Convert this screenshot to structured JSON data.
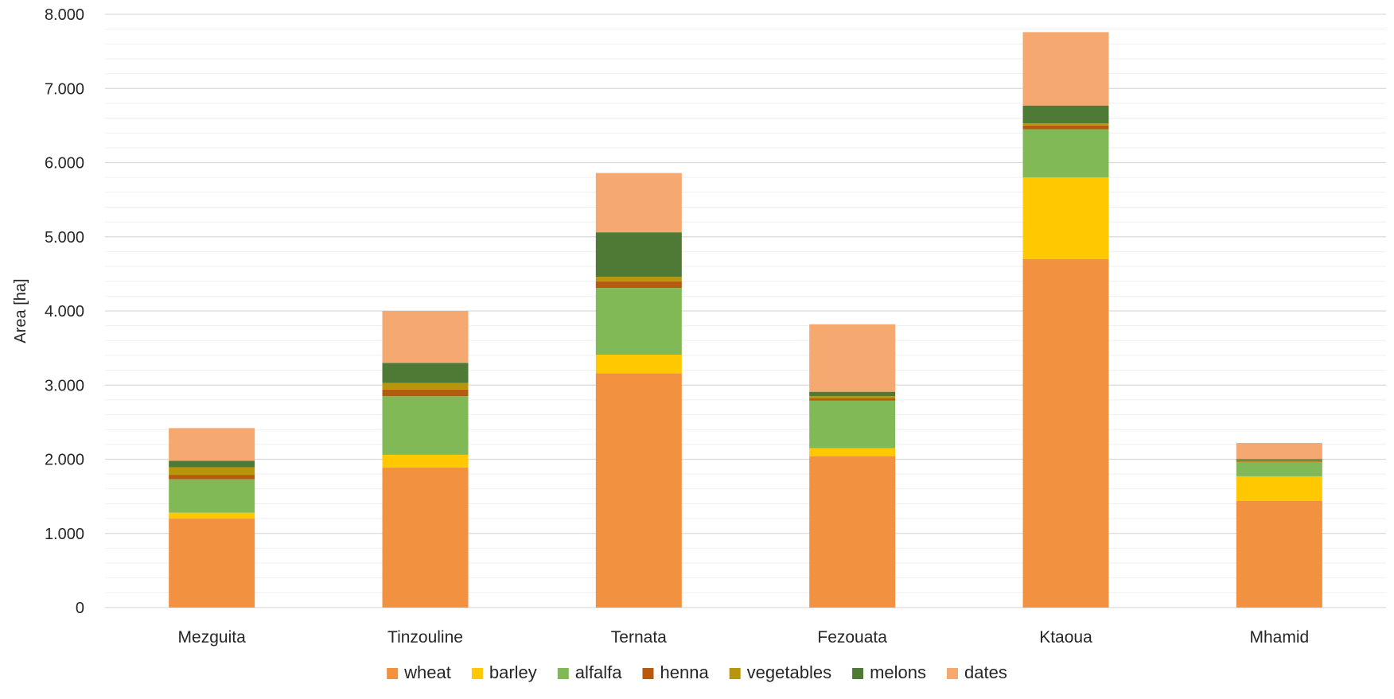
{
  "chart_data": {
    "type": "bar",
    "stacked": true,
    "title": "",
    "xlabel": "",
    "ylabel": "Area [ha]",
    "ylim": [
      0,
      8000
    ],
    "yticks": [
      0,
      1000,
      2000,
      3000,
      4000,
      5000,
      6000,
      7000,
      8000
    ],
    "ytick_labels": [
      "0",
      "1.000",
      "2.000",
      "3.000",
      "4.000",
      "5.000",
      "6.000",
      "7.000",
      "8.000"
    ],
    "grid": true,
    "legend_position": "bottom",
    "categories": [
      "Mezguita",
      "Tinzouline",
      "Ternata",
      "Fezouata",
      "Ktaoua",
      "Mhamid"
    ],
    "series": [
      {
        "name": "wheat",
        "color": "#f29140",
        "values": [
          1200,
          1890,
          3160,
          2040,
          4700,
          1440
        ]
      },
      {
        "name": "barley",
        "color": "#ffc800",
        "values": [
          80,
          170,
          250,
          110,
          1100,
          330
        ]
      },
      {
        "name": "alfalfa",
        "color": "#82b957",
        "values": [
          450,
          790,
          900,
          640,
          650,
          190
        ]
      },
      {
        "name": "henna",
        "color": "#b55a10",
        "values": [
          60,
          90,
          90,
          30,
          50,
          10
        ]
      },
      {
        "name": "vegetables",
        "color": "#b8960c",
        "values": [
          100,
          90,
          60,
          30,
          30,
          10
        ]
      },
      {
        "name": "melons",
        "color": "#4f7a35",
        "values": [
          90,
          270,
          600,
          60,
          240,
          20
        ]
      },
      {
        "name": "dates",
        "color": "#f5a870",
        "values": [
          440,
          700,
          800,
          910,
          990,
          220
        ]
      }
    ]
  }
}
